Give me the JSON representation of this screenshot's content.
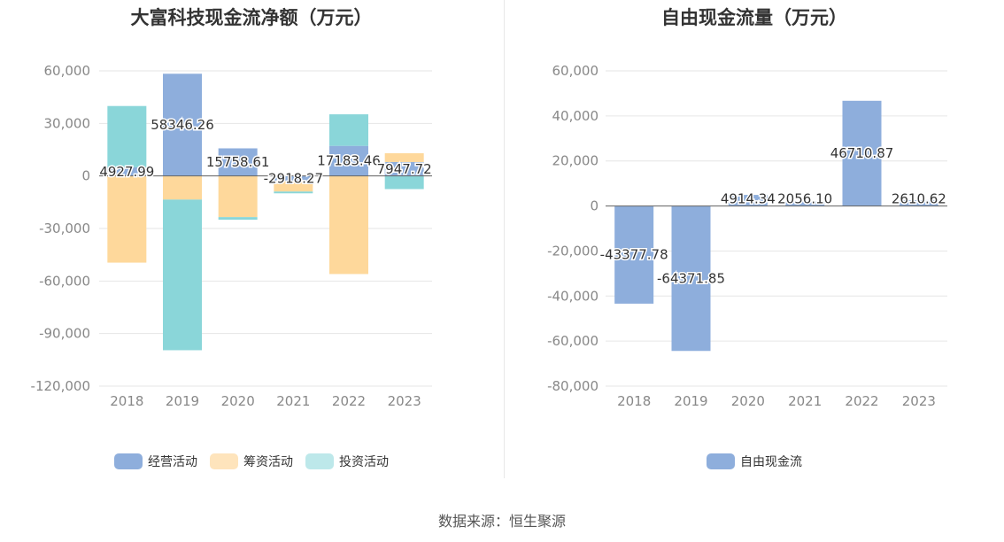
{
  "colors": {
    "operating": "#8eaedc",
    "financing": "#fed89b",
    "investing": "#8ad6d9",
    "fcf": "#8eaedc",
    "grid": "#e6e6e6",
    "axis": "#666666"
  },
  "footer": {
    "source": "数据来源：恒生聚源"
  },
  "chart_data": [
    {
      "type": "bar",
      "stacked": true,
      "title": "大富科技现金流净额（万元）",
      "categories": [
        "2018",
        "2019",
        "2020",
        "2021",
        "2022",
        "2023"
      ],
      "ylim": [
        -120000,
        60000
      ],
      "yticks": [
        60000,
        30000,
        0,
        -30000,
        -60000,
        -90000,
        -120000
      ],
      "ytick_labels": [
        "60,000",
        "30,000",
        "0",
        "-30,000",
        "-60,000",
        "-90,000",
        "-120,000"
      ],
      "grid": true,
      "legend_position": "bottom",
      "series": [
        {
          "name": "经营活动",
          "color_key": "operating",
          "values": [
            4927.99,
            58346.26,
            15758.61,
            -2918.27,
            17183.46,
            7947.72
          ]
        },
        {
          "name": "筹资活动",
          "color_key": "financing",
          "values": [
            -49500,
            -13500,
            -23500,
            -6000,
            -56000,
            5000
          ]
        },
        {
          "name": "投资活动",
          "color_key": "investing",
          "values": [
            35000,
            -86000,
            -1500,
            -1000,
            18000,
            -7500
          ]
        }
      ],
      "data_labels": [
        "4927.99",
        "58346.26",
        "15758.61",
        "-2918.27",
        "17183.46",
        "7947.72"
      ]
    },
    {
      "type": "bar",
      "title": "自由现金流量（万元）",
      "categories": [
        "2018",
        "2019",
        "2020",
        "2021",
        "2022",
        "2023"
      ],
      "ylim": [
        -80000,
        60000
      ],
      "yticks": [
        60000,
        40000,
        20000,
        0,
        -20000,
        -40000,
        -60000,
        -80000
      ],
      "ytick_labels": [
        "60,000",
        "40,000",
        "20,000",
        "0",
        "-20,000",
        "-40,000",
        "-60,000",
        "-80,000"
      ],
      "grid": true,
      "legend_position": "bottom",
      "series": [
        {
          "name": "自由现金流",
          "color_key": "fcf",
          "values": [
            -43377.78,
            -64371.85,
            4914.34,
            2056.1,
            46710.87,
            2610.62
          ]
        }
      ],
      "data_labels": [
        "-43377.78",
        "-64371.85",
        "4914.34",
        "2056.10",
        "46710.87",
        "2610.62"
      ]
    }
  ]
}
